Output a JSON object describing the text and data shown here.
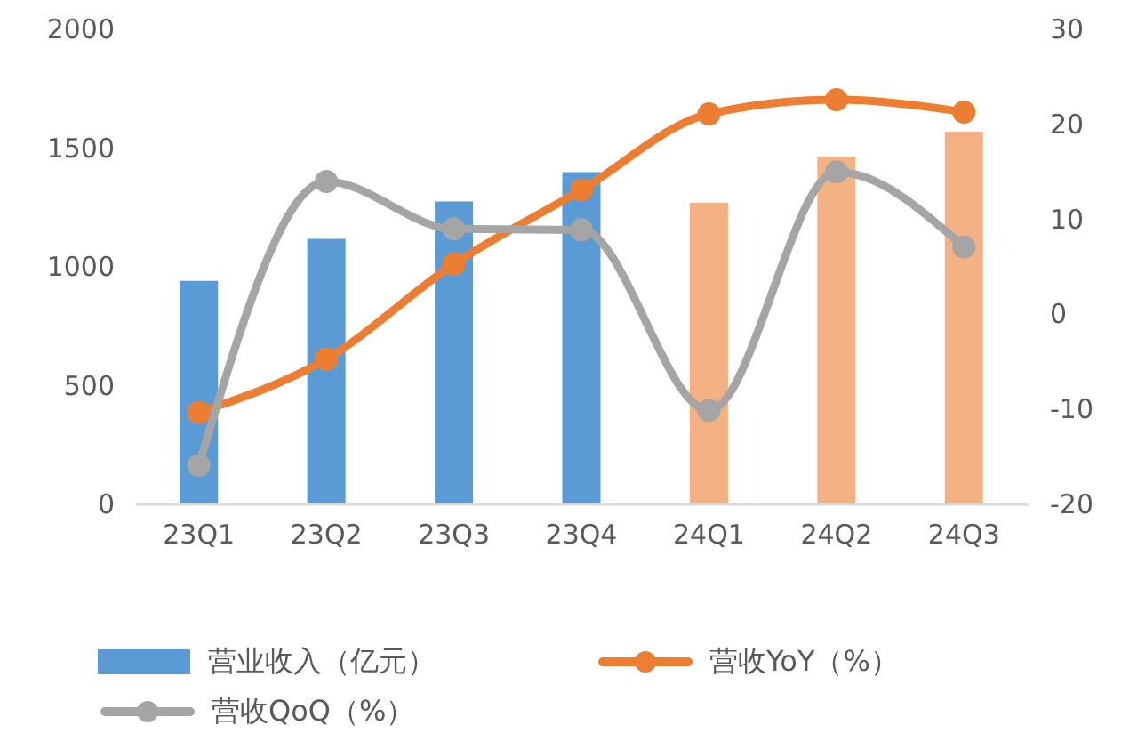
{
  "chart_data": {
    "type": "bar",
    "categories": [
      "23Q1",
      "23Q2",
      "23Q3",
      "23Q4",
      "24Q1",
      "24Q2",
      "24Q3"
    ],
    "series": [
      {
        "name": "营业收入（亿元）",
        "color": "#5b9bd5",
        "colors": [
          "#5b9bd5",
          "#5b9bd5",
          "#5b9bd5",
          "#5b9bd5",
          "#f4b183",
          "#f4b183",
          "#f4b183"
        ],
        "values": [
          937,
          1114,
          1272,
          1395,
          1266,
          1461,
          1566
        ]
      },
      {
        "name": "营收YoY（%）",
        "type": "line",
        "axis": "y2",
        "color": "#ed7d31",
        "values": [
          -10.4,
          -4.8,
          5.2,
          13.0,
          21.0,
          22.5,
          21.2
        ]
      },
      {
        "name": "营收QoQ（%）",
        "type": "line",
        "axis": "y2",
        "color": "#a5a5a5",
        "values": [
          -16.0,
          13.9,
          8.9,
          8.8,
          -10.2,
          14.9,
          7.0
        ]
      }
    ],
    "ylim": [
      0,
      2000
    ],
    "yticks": [
      0,
      500,
      1000,
      1500,
      2000
    ],
    "y2lim": [
      -20,
      30
    ],
    "y2ticks": [
      -20,
      -10,
      0,
      10,
      20,
      30
    ],
    "grid": false,
    "legend": "bottom",
    "marker": "circle"
  }
}
